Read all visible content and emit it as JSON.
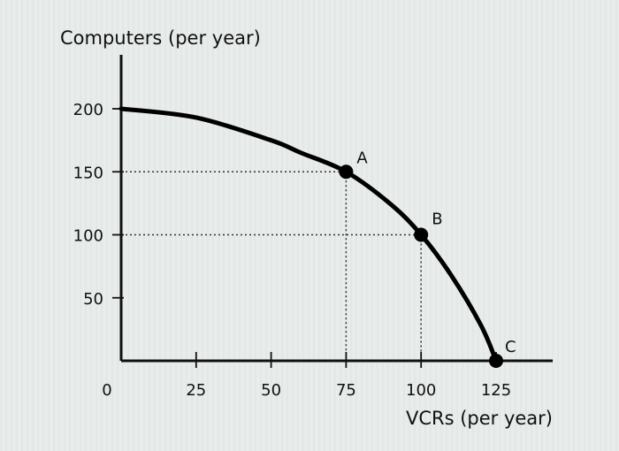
{
  "chart_data": {
    "type": "line",
    "ylabel": "Computers (per year)",
    "xlabel": "VCRs (per year)",
    "xlim": [
      0,
      125
    ],
    "ylim": [
      0,
      200
    ],
    "x_ticks": [
      25,
      50,
      75,
      100,
      125
    ],
    "y_ticks": [
      50,
      100,
      150,
      200
    ],
    "origin_label": "0",
    "series": [
      {
        "x": [
          0,
          25,
          50,
          60,
          75,
          90,
          100,
          110,
          120,
          125
        ],
        "y": [
          200,
          193,
          175,
          165,
          150,
          124,
          100,
          68,
          28,
          0
        ],
        "color": "#000000"
      }
    ],
    "points": [
      {
        "label": "A",
        "x": 75,
        "y": 150
      },
      {
        "label": "B",
        "x": 100,
        "y": 100
      },
      {
        "label": "C",
        "x": 125,
        "y": 0
      }
    ],
    "grid": false
  }
}
